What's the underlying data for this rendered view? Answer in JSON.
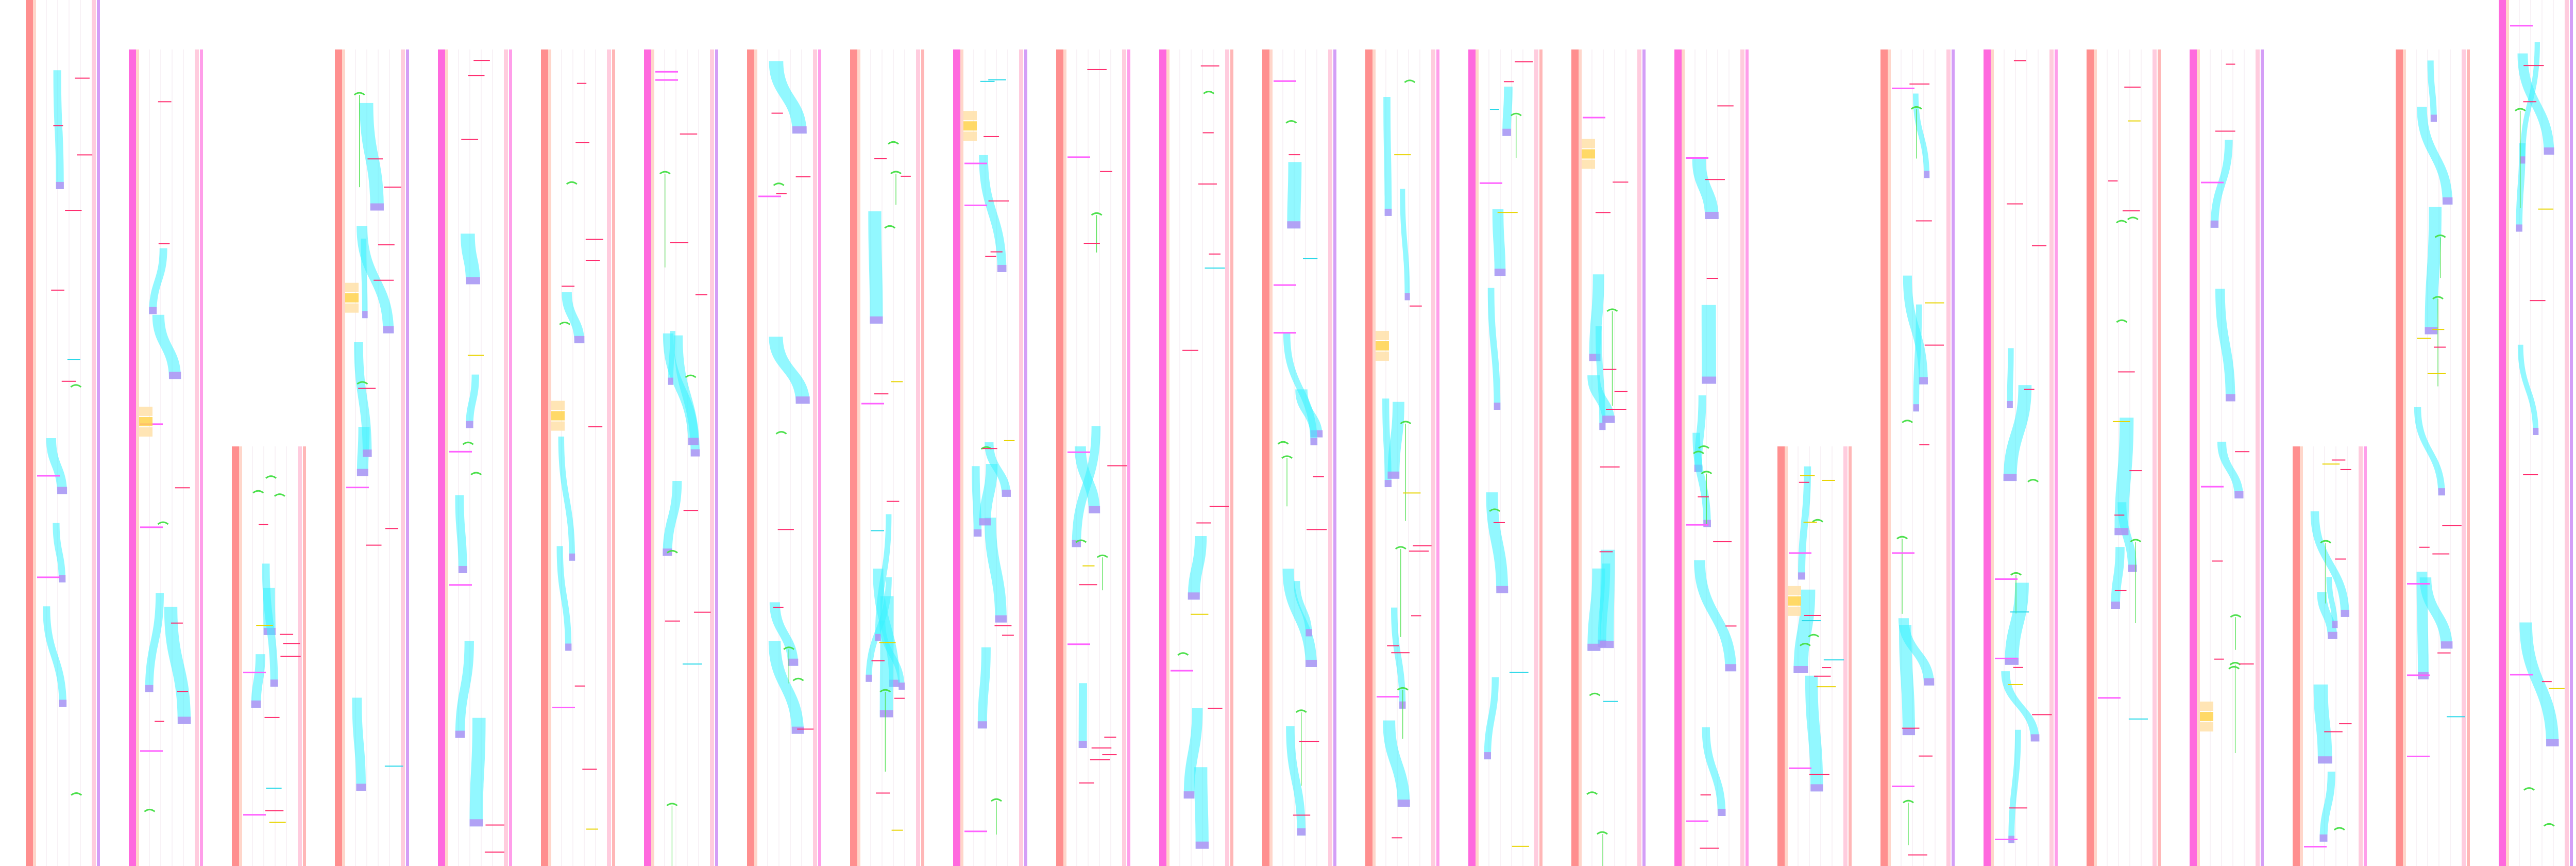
{
  "canvas": {
    "background": "#ffffff"
  },
  "palette": {
    "rail_primary": "#ff7b7b",
    "rail_pink": "#ff4fd8",
    "rail_violet": "#b04ff0",
    "rail_light": "#ffc9dc",
    "rail_peach": "#ffd2c4",
    "rail_cyan": "#4cf0f0",
    "flow_cyan": "#38f2ff",
    "flow_violet": "#b98cf3",
    "flow_magenta": "#ff60ff",
    "connector_green": "#4ce04c",
    "block_yellow": "#ffd24c",
    "block_peach": "#ffe0a8",
    "label_red": "#ff2a6d",
    "label_yellow": "#e8d400",
    "label_cyan": "#27d8e8"
  },
  "columns": [
    {
      "id": "col-01",
      "start": "top"
    },
    {
      "id": "col-02",
      "start": "mid"
    },
    {
      "id": "col-03",
      "start": "low"
    },
    {
      "id": "col-04",
      "start": "mid"
    },
    {
      "id": "col-05",
      "start": "mid"
    },
    {
      "id": "col-06",
      "start": "mid"
    },
    {
      "id": "col-07",
      "start": "mid"
    },
    {
      "id": "col-08",
      "start": "mid"
    },
    {
      "id": "col-09",
      "start": "mid"
    },
    {
      "id": "col-10",
      "start": "mid"
    },
    {
      "id": "col-11",
      "start": "mid"
    },
    {
      "id": "col-12",
      "start": "mid"
    },
    {
      "id": "col-13",
      "start": "mid"
    },
    {
      "id": "col-14",
      "start": "mid"
    },
    {
      "id": "col-15",
      "start": "mid"
    },
    {
      "id": "col-16",
      "start": "mid"
    },
    {
      "id": "col-17",
      "start": "mid"
    },
    {
      "id": "col-18",
      "start": "low"
    },
    {
      "id": "col-19",
      "start": "mid"
    },
    {
      "id": "col-20",
      "start": "mid"
    },
    {
      "id": "col-21",
      "start": "mid"
    },
    {
      "id": "col-22",
      "start": "mid"
    },
    {
      "id": "col-23",
      "start": "low"
    },
    {
      "id": "col-24",
      "start": "mid"
    },
    {
      "id": "col-25",
      "start": "top"
    }
  ]
}
